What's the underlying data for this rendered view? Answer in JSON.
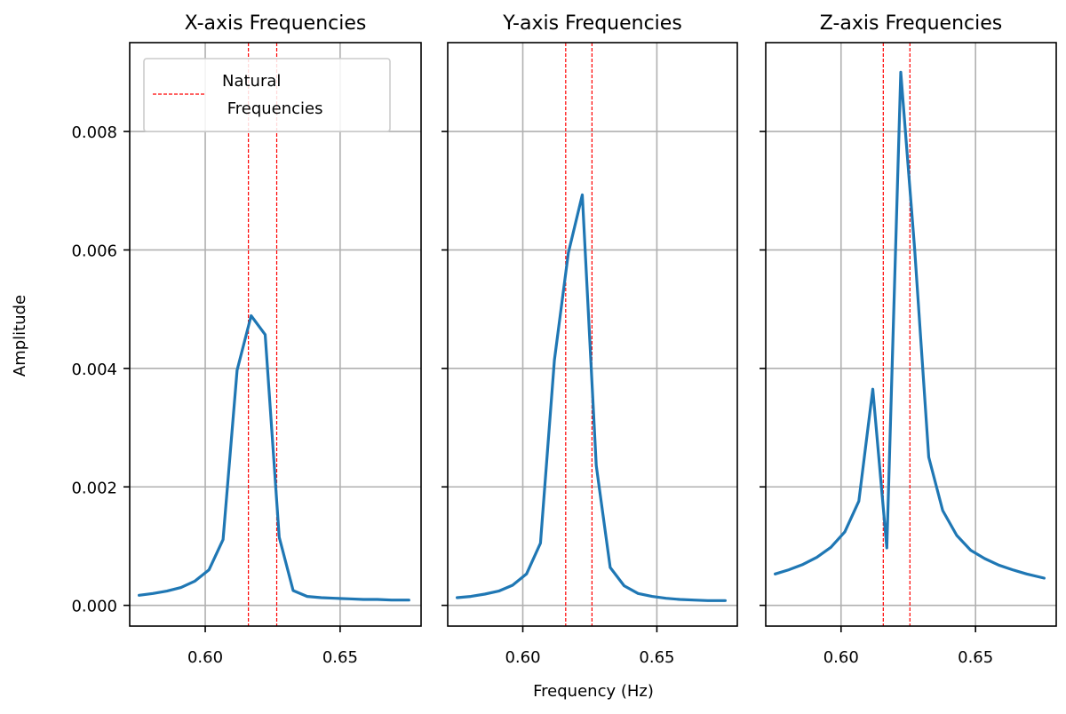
{
  "chart_data": {
    "type": "line",
    "shared_ylabel": "Amplitude",
    "shared_xlabel": "Frequency (Hz)",
    "xlim": [
      0.572,
      0.68
    ],
    "ylim": [
      -0.00035,
      0.0095
    ],
    "xticks": [
      0.6,
      0.65
    ],
    "xtick_labels": [
      "0.60",
      "0.65"
    ],
    "yticks": [
      0.0,
      0.002,
      0.004,
      0.006,
      0.008
    ],
    "ytick_labels": [
      "0.000",
      "0.002",
      "0.004",
      "0.006",
      "0.008"
    ],
    "grid": true,
    "legend": {
      "placement": "top-left",
      "label_line1": "Natural",
      "label_line2": " Frequencies",
      "color": "#ff0000"
    },
    "line_color": "#1f77b4",
    "natural_frequency_color": "#ff0000",
    "panels": [
      {
        "title": "X-axis Frequencies",
        "natural_frequencies": [
          0.616,
          0.6265
        ],
        "series": [
          {
            "x": [
              0.5755,
              0.5806,
              0.5858,
              0.591,
              0.5962,
              0.6014,
              0.6066,
              0.6118,
              0.617,
              0.6222,
              0.6274,
              0.6326,
              0.6378,
              0.643,
              0.6482,
              0.6534,
              0.6586,
              0.6638,
              0.669,
              0.6755
            ],
            "y": [
              0.00017,
              0.0002,
              0.00024,
              0.0003,
              0.00041,
              0.0006,
              0.00111,
              0.00397,
              0.00489,
              0.00457,
              0.00115,
              0.00025,
              0.00015,
              0.00013,
              0.00012,
              0.00011,
              0.0001,
              0.0001,
              9e-05,
              9e-05
            ]
          }
        ]
      },
      {
        "title": "Y-axis Frequencies",
        "natural_frequencies": [
          0.616,
          0.6258
        ],
        "series": [
          {
            "x": [
              0.5755,
              0.5806,
              0.5858,
              0.591,
              0.5962,
              0.6014,
              0.6066,
              0.6118,
              0.617,
              0.6222,
              0.6274,
              0.6326,
              0.6378,
              0.643,
              0.6482,
              0.6534,
              0.6586,
              0.6638,
              0.669,
              0.6755
            ],
            "y": [
              0.00013,
              0.00015,
              0.00019,
              0.00024,
              0.00034,
              0.00053,
              0.00105,
              0.00414,
              0.00595,
              0.00693,
              0.00236,
              0.00064,
              0.00033,
              0.0002,
              0.00015,
              0.00012,
              0.0001,
              9e-05,
              8e-05,
              8e-05
            ]
          }
        ]
      },
      {
        "title": "Z-axis Frequencies",
        "natural_frequencies": [
          0.6157,
          0.6256
        ],
        "series": [
          {
            "x": [
              0.5755,
              0.5806,
              0.5858,
              0.591,
              0.5962,
              0.6014,
              0.6066,
              0.6118,
              0.617,
              0.6222,
              0.6274,
              0.6326,
              0.6378,
              0.643,
              0.6482,
              0.6534,
              0.6586,
              0.6638,
              0.669,
              0.6755
            ],
            "y": [
              0.00053,
              0.0006,
              0.00069,
              0.00081,
              0.00098,
              0.00124,
              0.00176,
              0.00365,
              0.00097,
              0.009,
              0.006,
              0.0025,
              0.0016,
              0.00118,
              0.00093,
              0.00079,
              0.00068,
              0.0006,
              0.00053,
              0.00046
            ]
          }
        ]
      }
    ]
  }
}
